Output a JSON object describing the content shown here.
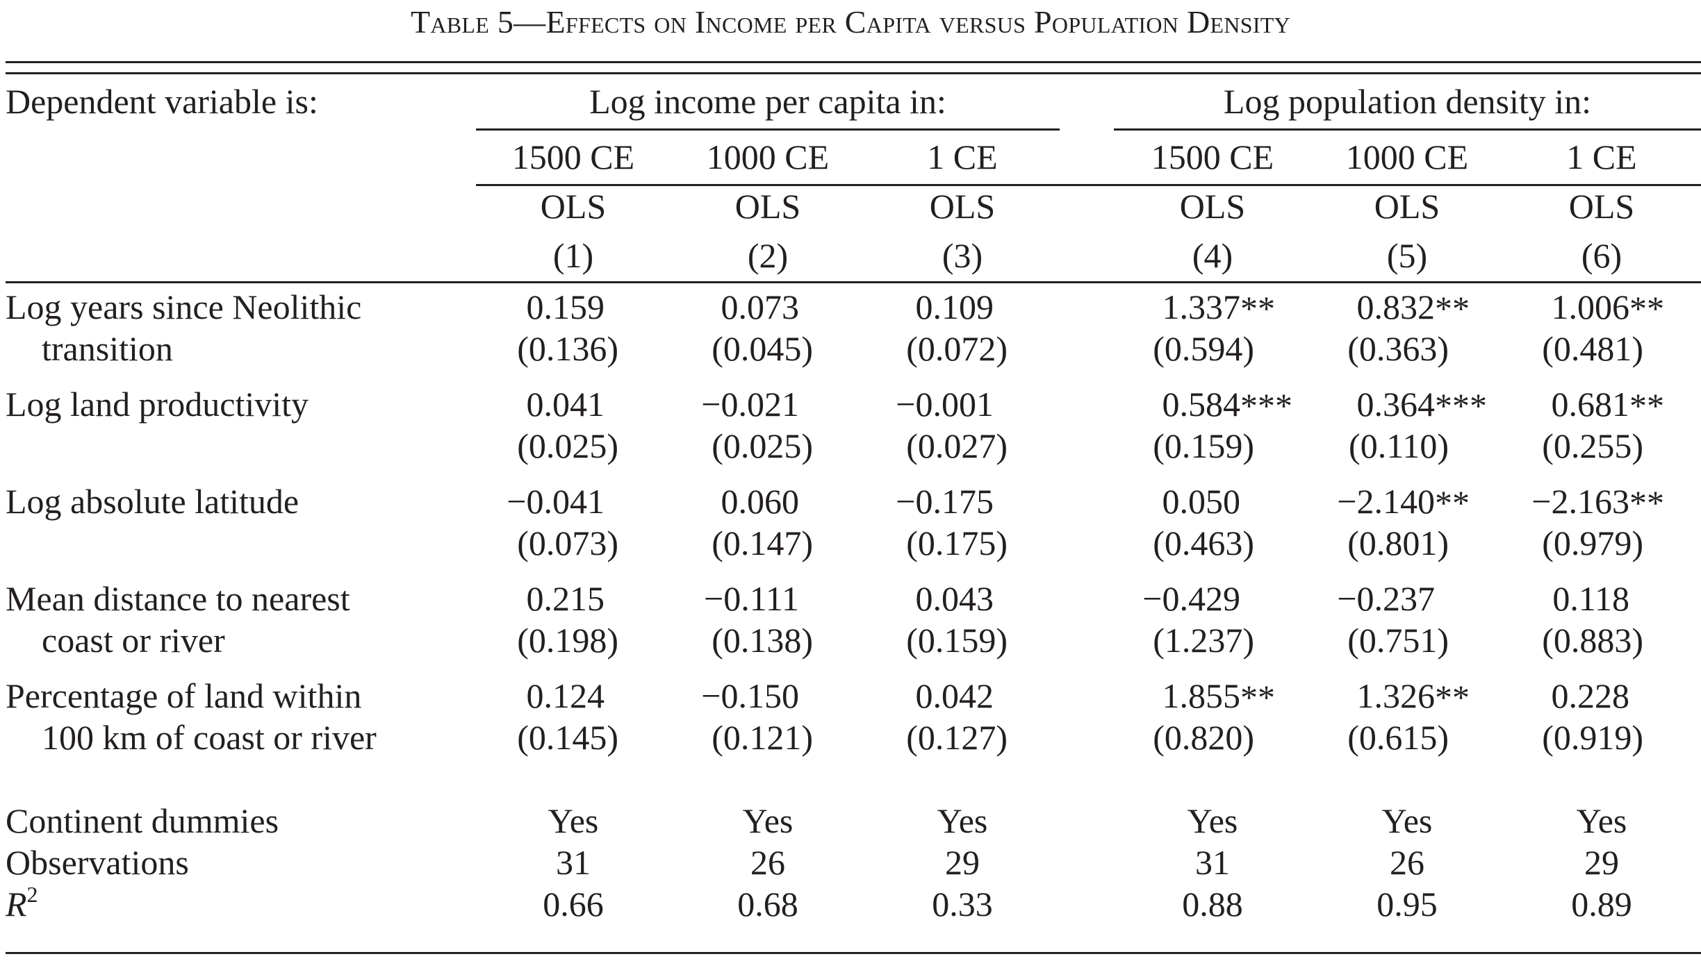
{
  "title": "Table 5—Effects on Income per Capita versus Population Density",
  "header": {
    "dep_var_label": "Dependent variable is:",
    "group1": "Log income per capita in:",
    "group2": "Log population density in:",
    "years": [
      "1500 CE",
      "1000 CE",
      "1 CE",
      "1500 CE",
      "1000 CE",
      "1 CE"
    ],
    "methods": [
      "OLS",
      "OLS",
      "OLS",
      "OLS",
      "OLS",
      "OLS"
    ],
    "col_numbers": [
      "(1)",
      "(2)",
      "(3)",
      "(4)",
      "(5)",
      "(6)"
    ]
  },
  "rows": [
    {
      "label1": "Log years since Neolithic",
      "label2": "transition",
      "coef": [
        "0.159",
        "0.073",
        "0.109",
        "1.337",
        "0.832",
        "1.006"
      ],
      "stars": [
        "",
        "",
        "",
        "**",
        "**",
        "**"
      ],
      "se": [
        "(0.136)",
        "(0.045)",
        "(0.072)",
        "(0.594)",
        "(0.363)",
        "(0.481)"
      ]
    },
    {
      "label1": "Log land productivity",
      "label2": "",
      "coef": [
        "0.041",
        "−0.021",
        "−0.001",
        "0.584",
        "0.364",
        "0.681"
      ],
      "stars": [
        "",
        "",
        "",
        "***",
        "***",
        "**"
      ],
      "se": [
        "(0.025)",
        "(0.025)",
        "(0.027)",
        "(0.159)",
        "(0.110)",
        "(0.255)"
      ]
    },
    {
      "label1": "Log absolute latitude",
      "label2": "",
      "coef": [
        "−0.041",
        "0.060",
        "−0.175",
        "0.050",
        "−2.140",
        "−2.163"
      ],
      "stars": [
        "",
        "",
        "",
        "",
        "**",
        "**"
      ],
      "se": [
        "(0.073)",
        "(0.147)",
        "(0.175)",
        "(0.463)",
        "(0.801)",
        "(0.979)"
      ]
    },
    {
      "label1": "Mean distance to nearest",
      "label2": "coast or river",
      "coef": [
        "0.215",
        "−0.111",
        "0.043",
        "−0.429",
        "−0.237",
        "0.118"
      ],
      "stars": [
        "",
        "",
        "",
        "",
        "",
        ""
      ],
      "se": [
        "(0.198)",
        "(0.138)",
        "(0.159)",
        "(1.237)",
        "(0.751)",
        "(0.883)"
      ]
    },
    {
      "label1": "Percentage of land within",
      "label2": "100 km of coast or river",
      "coef": [
        "0.124",
        "−0.150",
        "0.042",
        "1.855",
        "1.326",
        "0.228"
      ],
      "stars": [
        "",
        "",
        "",
        "**",
        "**",
        ""
      ],
      "se": [
        "(0.145)",
        "(0.121)",
        "(0.127)",
        "(0.820)",
        "(0.615)",
        "(0.919)"
      ]
    }
  ],
  "footer": {
    "continent_label": "Continent dummies",
    "continent": [
      "Yes",
      "Yes",
      "Yes",
      "Yes",
      "Yes",
      "Yes"
    ],
    "obs_label": "Observations",
    "obs": [
      "31",
      "26",
      "29",
      "31",
      "26",
      "29"
    ],
    "r2_label_base": "R",
    "r2_label_sup": "2",
    "r2": [
      "0.66",
      "0.68",
      "0.33",
      "0.88",
      "0.95",
      "0.89"
    ]
  }
}
